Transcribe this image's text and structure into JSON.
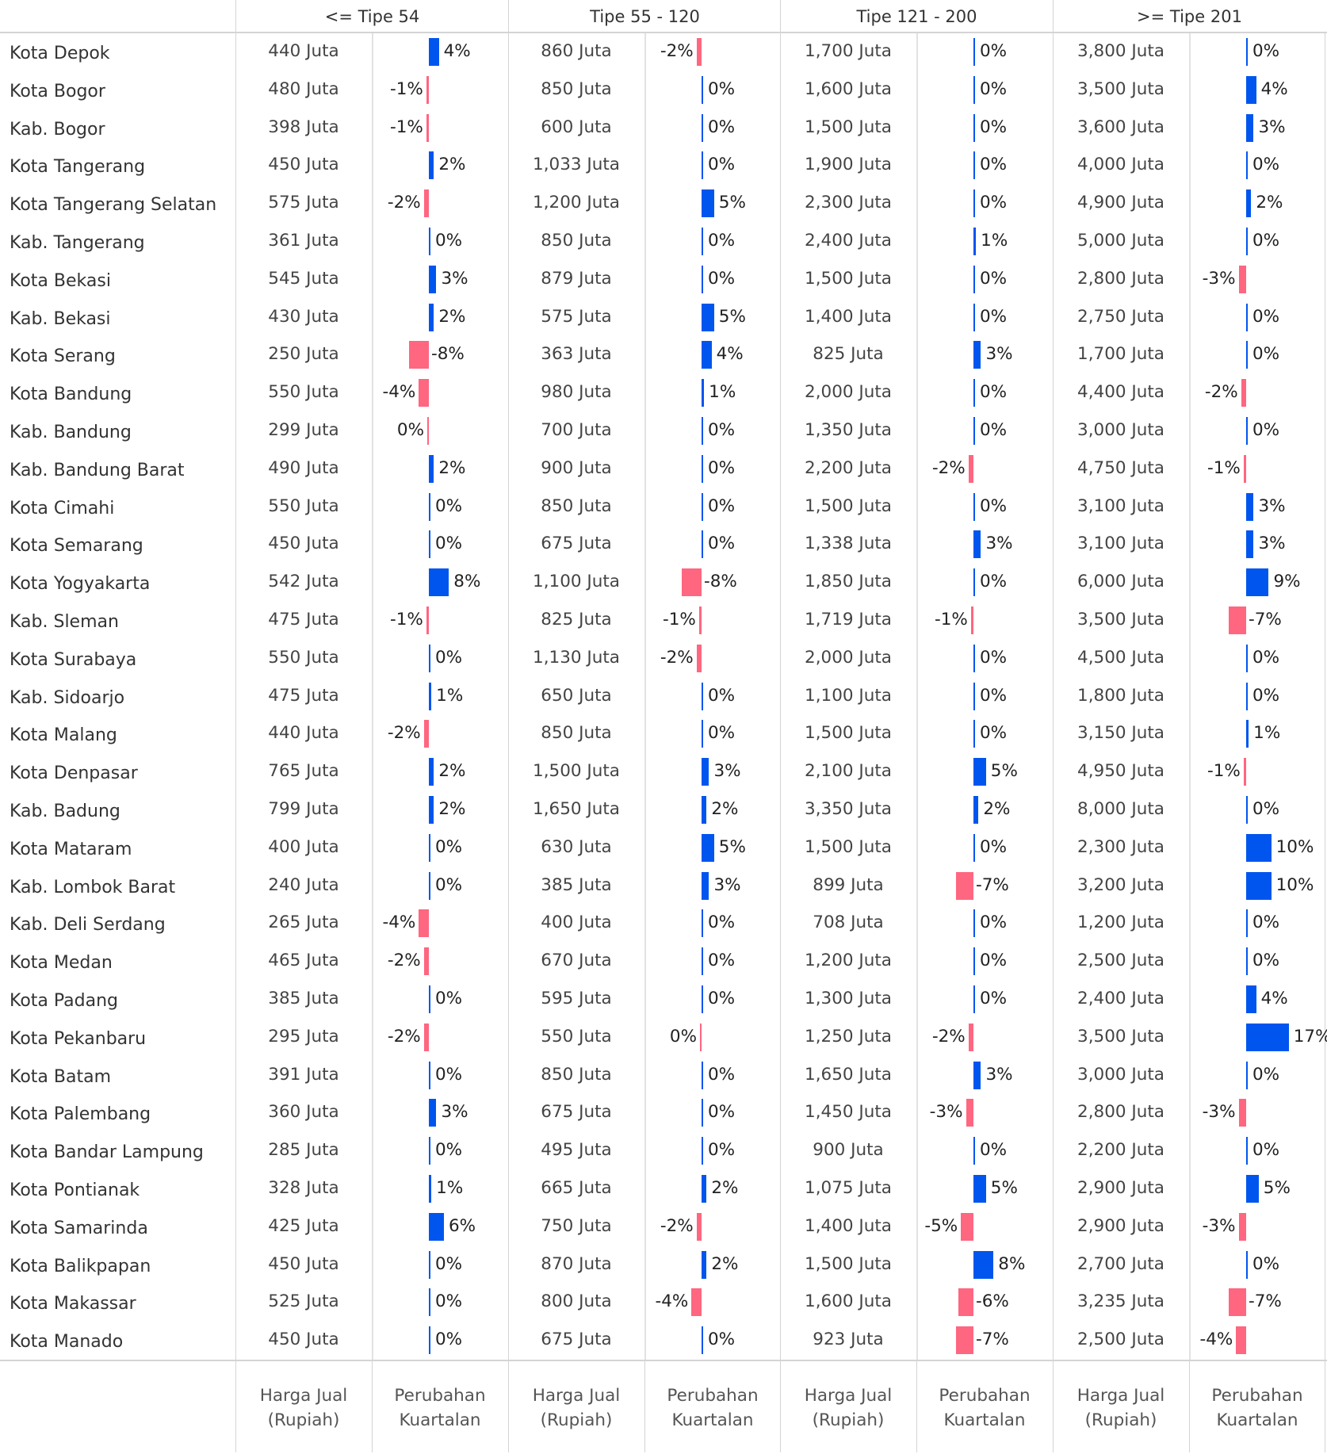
{
  "colors": {
    "positive": "#0055ee",
    "negative": "#ff6680"
  },
  "groups": [
    "<= Tipe 54",
    "Tipe 55 - 120",
    "Tipe 121 - 200",
    ">= Tipe 201"
  ],
  "footer": {
    "price_label": [
      "Harga Jual",
      "(Rupiah)"
    ],
    "change_label": [
      "Perubahan",
      "Kuartalan"
    ]
  },
  "unit": "Juta",
  "chart_data": {
    "type": "table",
    "columns": [
      "Harga Jual (Rupiah)",
      "Perubahan Kuartalan"
    ],
    "rows": [
      {
        "name": "Kota Depok",
        "cells": [
          [
            "440",
            4
          ],
          [
            "860",
            -2
          ],
          [
            "1,700",
            0
          ],
          [
            "3,800",
            0
          ]
        ]
      },
      {
        "name": "Kota Bogor",
        "cells": [
          [
            "480",
            -1
          ],
          [
            "850",
            0
          ],
          [
            "1,600",
            0
          ],
          [
            "3,500",
            4
          ]
        ]
      },
      {
        "name": "Kab. Bogor",
        "cells": [
          [
            "398",
            -1
          ],
          [
            "600",
            0
          ],
          [
            "1,500",
            0
          ],
          [
            "3,600",
            3
          ]
        ]
      },
      {
        "name": "Kota Tangerang",
        "cells": [
          [
            "450",
            2
          ],
          [
            "1,033",
            0
          ],
          [
            "1,900",
            0
          ],
          [
            "4,000",
            0
          ]
        ]
      },
      {
        "name": "Kota Tangerang Selatan",
        "cells": [
          [
            "575",
            -2
          ],
          [
            "1,200",
            5
          ],
          [
            "2,300",
            0
          ],
          [
            "4,900",
            2
          ]
        ]
      },
      {
        "name": "Kab. Tangerang",
        "cells": [
          [
            "361",
            0
          ],
          [
            "850",
            0
          ],
          [
            "2,400",
            1
          ],
          [
            "5,000",
            0
          ]
        ]
      },
      {
        "name": "Kota Bekasi",
        "cells": [
          [
            "545",
            3
          ],
          [
            "879",
            0
          ],
          [
            "1,500",
            0
          ],
          [
            "2,800",
            -3
          ]
        ]
      },
      {
        "name": "Kab. Bekasi",
        "cells": [
          [
            "430",
            2
          ],
          [
            "575",
            5
          ],
          [
            "1,400",
            0
          ],
          [
            "2,750",
            0
          ]
        ]
      },
      {
        "name": "Kota Serang",
        "cells": [
          [
            "250",
            -8
          ],
          [
            "363",
            4
          ],
          [
            "825",
            3
          ],
          [
            "1,700",
            0
          ]
        ]
      },
      {
        "name": "Kota Bandung",
        "cells": [
          [
            "550",
            -4
          ],
          [
            "980",
            1
          ],
          [
            "2,000",
            0
          ],
          [
            "4,400",
            -2
          ]
        ]
      },
      {
        "name": "Kab. Bandung",
        "cells": [
          [
            "299",
            -0.4
          ],
          [
            "700",
            0
          ],
          [
            "1,350",
            0
          ],
          [
            "3,000",
            0
          ]
        ]
      },
      {
        "name": "Kab. Bandung Barat",
        "cells": [
          [
            "490",
            2
          ],
          [
            "900",
            0
          ],
          [
            "2,200",
            -2
          ],
          [
            "4,750",
            -1
          ]
        ]
      },
      {
        "name": "Kota Cimahi",
        "cells": [
          [
            "550",
            0
          ],
          [
            "850",
            0
          ],
          [
            "1,500",
            0
          ],
          [
            "3,100",
            3
          ]
        ]
      },
      {
        "name": "Kota Semarang",
        "cells": [
          [
            "450",
            0
          ],
          [
            "675",
            0
          ],
          [
            "1,338",
            3
          ],
          [
            "3,100",
            3
          ]
        ]
      },
      {
        "name": "Kota Yogyakarta",
        "cells": [
          [
            "542",
            8
          ],
          [
            "1,100",
            -8
          ],
          [
            "1,850",
            0
          ],
          [
            "6,000",
            9
          ]
        ]
      },
      {
        "name": "Kab. Sleman",
        "cells": [
          [
            "475",
            -1
          ],
          [
            "825",
            -1
          ],
          [
            "1,719",
            -1
          ],
          [
            "3,500",
            -7
          ]
        ]
      },
      {
        "name": "Kota Surabaya",
        "cells": [
          [
            "550",
            0
          ],
          [
            "1,130",
            -2
          ],
          [
            "2,000",
            0
          ],
          [
            "4,500",
            0
          ]
        ]
      },
      {
        "name": "Kab. Sidoarjo",
        "cells": [
          [
            "475",
            1
          ],
          [
            "650",
            0
          ],
          [
            "1,100",
            0
          ],
          [
            "1,800",
            0
          ]
        ]
      },
      {
        "name": "Kota Malang",
        "cells": [
          [
            "440",
            -2
          ],
          [
            "850",
            0
          ],
          [
            "1,500",
            0
          ],
          [
            "3,150",
            1
          ]
        ]
      },
      {
        "name": "Kota Denpasar",
        "cells": [
          [
            "765",
            2
          ],
          [
            "1,500",
            3
          ],
          [
            "2,100",
            5
          ],
          [
            "4,950",
            -1
          ]
        ]
      },
      {
        "name": "Kab. Badung",
        "cells": [
          [
            "799",
            2
          ],
          [
            "1,650",
            2
          ],
          [
            "3,350",
            2
          ],
          [
            "8,000",
            0
          ]
        ]
      },
      {
        "name": "Kota Mataram",
        "cells": [
          [
            "400",
            0
          ],
          [
            "630",
            5
          ],
          [
            "1,500",
            0
          ],
          [
            "2,300",
            10
          ]
        ]
      },
      {
        "name": "Kab. Lombok Barat",
        "cells": [
          [
            "240",
            0
          ],
          [
            "385",
            3
          ],
          [
            "899",
            -7
          ],
          [
            "3,200",
            10
          ]
        ]
      },
      {
        "name": "Kab. Deli Serdang",
        "cells": [
          [
            "265",
            -4
          ],
          [
            "400",
            0
          ],
          [
            "708",
            0
          ],
          [
            "1,200",
            0
          ]
        ]
      },
      {
        "name": "Kota Medan",
        "cells": [
          [
            "465",
            -2
          ],
          [
            "670",
            0
          ],
          [
            "1,200",
            0
          ],
          [
            "2,500",
            0
          ]
        ]
      },
      {
        "name": "Kota Padang",
        "cells": [
          [
            "385",
            0
          ],
          [
            "595",
            0
          ],
          [
            "1,300",
            0
          ],
          [
            "2,400",
            4
          ]
        ]
      },
      {
        "name": "Kota Pekanbaru",
        "cells": [
          [
            "295",
            -2
          ],
          [
            "550",
            -0.4
          ],
          [
            "1,250",
            -2
          ],
          [
            "3,500",
            17
          ]
        ]
      },
      {
        "name": "Kota Batam",
        "cells": [
          [
            "391",
            0
          ],
          [
            "850",
            0
          ],
          [
            "1,650",
            3
          ],
          [
            "3,000",
            0
          ]
        ]
      },
      {
        "name": "Kota Palembang",
        "cells": [
          [
            "360",
            3
          ],
          [
            "675",
            0
          ],
          [
            "1,450",
            -3
          ],
          [
            "2,800",
            -3
          ]
        ]
      },
      {
        "name": "Kota Bandar Lampung",
        "cells": [
          [
            "285",
            0
          ],
          [
            "495",
            0
          ],
          [
            "900",
            0
          ],
          [
            "2,200",
            0
          ]
        ]
      },
      {
        "name": "Kota Pontianak",
        "cells": [
          [
            "328",
            1
          ],
          [
            "665",
            2
          ],
          [
            "1,075",
            5
          ],
          [
            "2,900",
            5
          ]
        ]
      },
      {
        "name": "Kota Samarinda",
        "cells": [
          [
            "425",
            6
          ],
          [
            "750",
            -2
          ],
          [
            "1,400",
            -5
          ],
          [
            "2,900",
            -3
          ]
        ]
      },
      {
        "name": "Kota Balikpapan",
        "cells": [
          [
            "450",
            0
          ],
          [
            "870",
            2
          ],
          [
            "1,500",
            8
          ],
          [
            "2,700",
            0
          ]
        ]
      },
      {
        "name": "Kota Makassar",
        "cells": [
          [
            "525",
            0
          ],
          [
            "800",
            -4
          ],
          [
            "1,600",
            -6
          ],
          [
            "3,235",
            -7
          ]
        ]
      },
      {
        "name": "Kota Manado",
        "cells": [
          [
            "450",
            0
          ],
          [
            "675",
            0
          ],
          [
            "923",
            -7
          ],
          [
            "2,500",
            -4
          ]
        ]
      }
    ]
  }
}
